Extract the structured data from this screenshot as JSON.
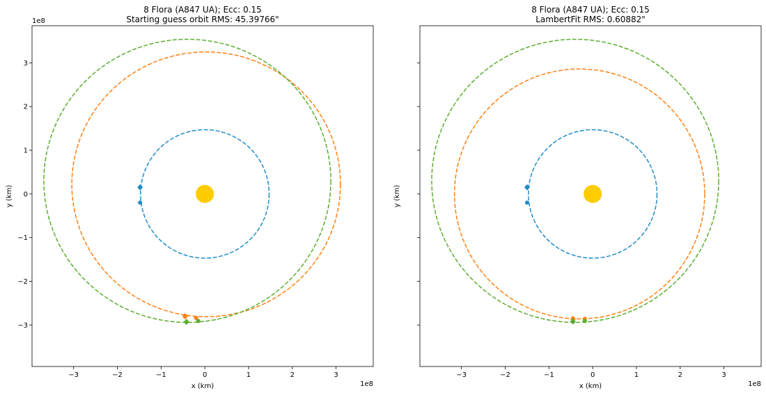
{
  "chart_data": [
    {
      "type": "scatter",
      "title_line1": "8 Flora (A847 UA); Ecc: 0.15",
      "title_line2": "Starting guess orbit RMS: 45.39766\"",
      "xlabel": "x (km)",
      "ylabel": "y (km)",
      "x_offset_label": "1e8",
      "y_offset_label": "1e8",
      "xlim": [
        -3.95,
        3.85
      ],
      "ylim": [
        -3.95,
        3.85
      ],
      "xticks": [
        -3,
        -2,
        -1,
        0,
        1,
        2,
        3
      ],
      "yticks": [
        -3,
        -2,
        -1,
        0,
        1,
        2,
        3
      ],
      "xtick_labels": [
        "−3",
        "−2",
        "−1",
        "0",
        "1",
        "2",
        "3"
      ],
      "ytick_labels": [
        "−3",
        "−2",
        "−1",
        "0",
        "1",
        "2",
        "3"
      ],
      "show_y_tick_labels": true,
      "grid": false,
      "sun": {
        "x": 0,
        "y": 0,
        "color": "#ffcc00"
      },
      "orbits": [
        {
          "color": "#1f8dc8",
          "cx": 0,
          "cy": 0,
          "rx": 1.47,
          "ry": 1.47
        },
        {
          "color": "#ff7f0e",
          "cx": 0.03,
          "cy": 0.22,
          "rx": 3.07,
          "ry": 3.03
        },
        {
          "color": "#5aad2e",
          "cx": -0.4,
          "cy": 0.3,
          "rx": 3.28,
          "ry": 3.24
        }
      ],
      "markers": [
        {
          "color": "#1f8dc8",
          "shape": "diamond",
          "x": -1.48,
          "y": 0.15
        },
        {
          "color": "#1f8dc8",
          "shape": "circle",
          "x": -1.48,
          "y": -0.2
        },
        {
          "color": "#ff7f0e",
          "shape": "diamond",
          "x": -0.45,
          "y": -2.8
        },
        {
          "color": "#ff7f0e",
          "shape": "circle",
          "x": -0.2,
          "y": -2.84
        },
        {
          "color": "#5aad2e",
          "shape": "diamond",
          "x": -0.42,
          "y": -2.93
        },
        {
          "color": "#5aad2e",
          "shape": "circle",
          "x": -0.15,
          "y": -2.91
        }
      ]
    },
    {
      "type": "scatter",
      "title_line1": "8 Flora (A847 UA); Ecc: 0.15",
      "title_line2": "LambertFit RMS: 0.60882\"",
      "xlabel": "x (km)",
      "ylabel": "y (km)",
      "x_offset_label": "1e8",
      "y_offset_label": "",
      "xlim": [
        -3.95,
        3.85
      ],
      "ylim": [
        -3.95,
        3.85
      ],
      "xticks": [
        -3,
        -2,
        -1,
        0,
        1,
        2,
        3
      ],
      "yticks": [
        -3,
        -2,
        -1,
        0,
        1,
        2,
        3
      ],
      "xtick_labels": [
        "−3",
        "−2",
        "−1",
        "0",
        "1",
        "2",
        "3"
      ],
      "ytick_labels": [],
      "show_y_tick_labels": false,
      "grid": false,
      "sun": {
        "x": 0,
        "y": 0,
        "color": "#ffcc00"
      },
      "orbits": [
        {
          "color": "#1f8dc8",
          "cx": 0,
          "cy": 0,
          "rx": 1.47,
          "ry": 1.47
        },
        {
          "color": "#ff7f0e",
          "cx": -0.3,
          "cy": 0,
          "rx": 2.86,
          "ry": 2.86
        },
        {
          "color": "#5aad2e",
          "cx": -0.4,
          "cy": 0.3,
          "rx": 3.28,
          "ry": 3.24
        }
      ],
      "markers": [
        {
          "color": "#1f8dc8",
          "shape": "diamond",
          "x": -1.5,
          "y": 0.15
        },
        {
          "color": "#1f8dc8",
          "shape": "circle",
          "x": -1.5,
          "y": -0.2
        },
        {
          "color": "#ff7f0e",
          "shape": "diamond",
          "x": -0.45,
          "y": -2.86
        },
        {
          "color": "#ff7f0e",
          "shape": "circle",
          "x": -0.18,
          "y": -2.86
        },
        {
          "color": "#5aad2e",
          "shape": "diamond",
          "x": -0.45,
          "y": -2.92
        },
        {
          "color": "#5aad2e",
          "shape": "circle",
          "x": -0.18,
          "y": -2.91
        }
      ]
    }
  ]
}
